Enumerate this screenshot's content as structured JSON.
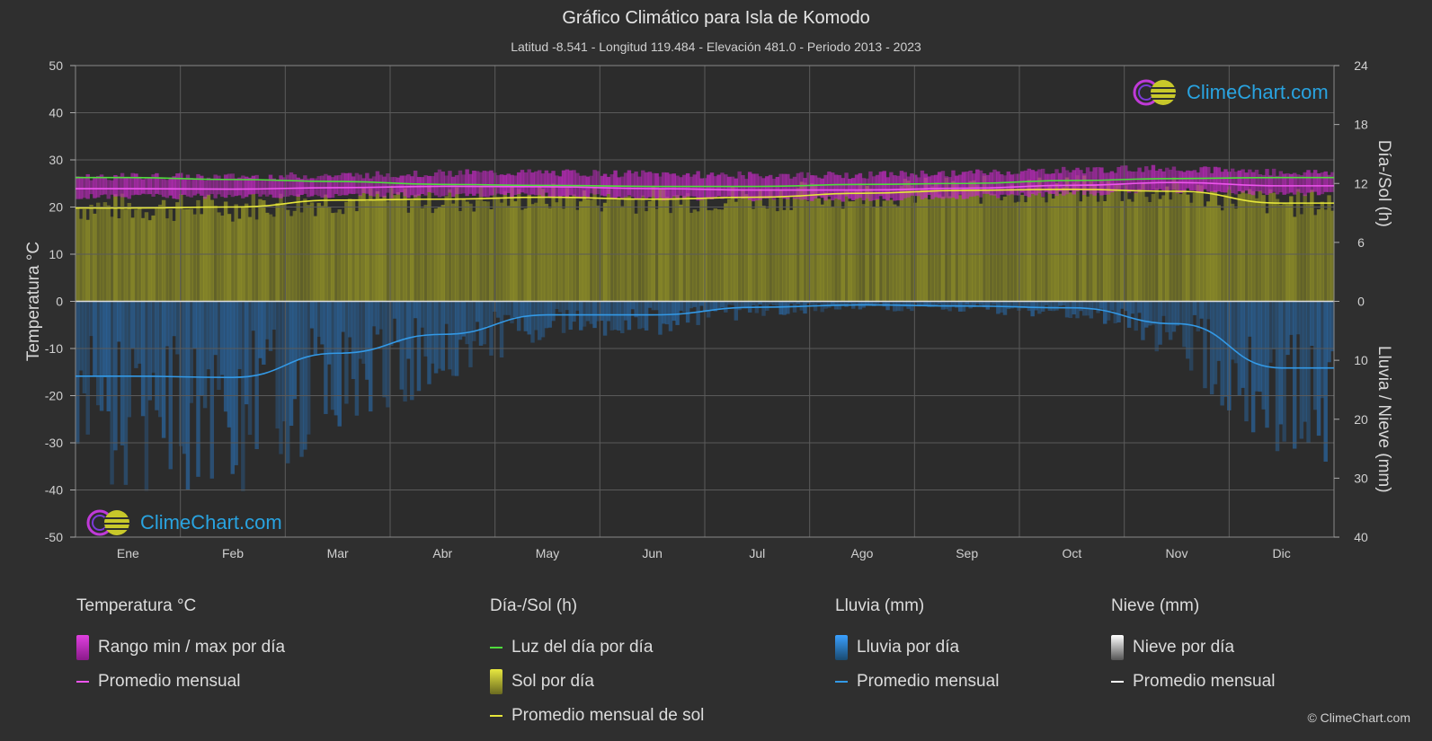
{
  "header": {
    "title": "Gráfico Climático para Isla de Komodo",
    "subtitle": "Latitud -8.541 - Longitud 119.484 - Elevación 481.0 - Periodo 2013 - 2023"
  },
  "chart_data": {
    "type": "line",
    "xlabel": "",
    "categories": [
      "Ene",
      "Feb",
      "Mar",
      "Abr",
      "May",
      "Jun",
      "Jul",
      "Ago",
      "Sep",
      "Oct",
      "Nov",
      "Dic"
    ],
    "left_axis": {
      "label": "Temperatura °C",
      "range": [
        -50,
        50
      ],
      "ticks": [
        50,
        40,
        30,
        20,
        10,
        0,
        -10,
        -20,
        -30,
        -40,
        -50
      ]
    },
    "right_axis_top": {
      "label": "Día-/Sol (h)",
      "range": [
        0,
        24
      ],
      "ticks": [
        24,
        18,
        12,
        6,
        0
      ]
    },
    "right_axis_bottom": {
      "label": "Lluvia / Nieve (mm)",
      "range": [
        0,
        40
      ],
      "ticks": [
        0,
        10,
        20,
        30,
        40
      ]
    },
    "grid": true,
    "series": [
      {
        "name": "Luz del día por día",
        "axis": "hours",
        "color": "#4fdc3c",
        "values": [
          12.6,
          12.4,
          12.2,
          11.9,
          11.8,
          11.7,
          11.7,
          11.9,
          12.0,
          12.3,
          12.5,
          12.6
        ]
      },
      {
        "name": "Promedio mensual",
        "axis": "temp",
        "color": "#ee55ee",
        "values": [
          23.9,
          23.8,
          24.1,
          24.4,
          24.3,
          23.9,
          23.6,
          23.6,
          24.0,
          24.6,
          25.2,
          24.5
        ]
      },
      {
        "name": "Promedio mensual de sol",
        "axis": "hours",
        "color": "#e6e63a",
        "values": [
          9.5,
          9.6,
          10.3,
          10.4,
          10.6,
          10.4,
          10.6,
          11.0,
          11.3,
          11.4,
          11.2,
          10.0
        ]
      },
      {
        "name": "Promedio mensual",
        "axis": "rain",
        "color": "#3399e6",
        "values": [
          12.7,
          12.9,
          8.8,
          5.6,
          2.3,
          2.3,
          1.0,
          0.6,
          0.8,
          1.1,
          3.8,
          11.3
        ]
      }
    ],
    "temp_range": {
      "name": "Rango min / max por día",
      "min": [
        22.3,
        22.2,
        22.4,
        22.6,
        22.5,
        22.0,
        21.7,
        21.7,
        22.2,
        22.9,
        23.5,
        22.9
      ],
      "max": [
        26.5,
        26.4,
        26.7,
        27.2,
        27.3,
        27.0,
        26.7,
        26.8,
        27.2,
        27.8,
        28.3,
        27.3
      ]
    },
    "sun_bars": {
      "name": "Sol por día"
    },
    "rain_bars": {
      "name": "Lluvia por día"
    }
  },
  "legend": {
    "temperature": {
      "heading": "Temperatura °C",
      "items": [
        "Rango min / max por día",
        "Promedio mensual"
      ]
    },
    "daysun": {
      "heading": "Día-/Sol (h)",
      "items": [
        "Luz del día por día",
        "Sol por día",
        "Promedio mensual de sol"
      ]
    },
    "rain": {
      "heading": "Lluvia (mm)",
      "items": [
        "Lluvia por día",
        "Promedio mensual"
      ]
    },
    "snow": {
      "heading": "Nieve (mm)",
      "items": [
        "Nieve por día",
        "Promedio mensual"
      ]
    }
  },
  "colors": {
    "background": "#2f2f2f",
    "temp_range": "#d020d0",
    "daylight": "#4fdc3c",
    "sun": "#a9a92a",
    "rain": "#2a78c0",
    "snow": "#ffffff",
    "brand": "#29a3e0"
  },
  "branding": {
    "logo_text": "ClimeChart.com",
    "copyright": "© ClimeChart.com"
  }
}
